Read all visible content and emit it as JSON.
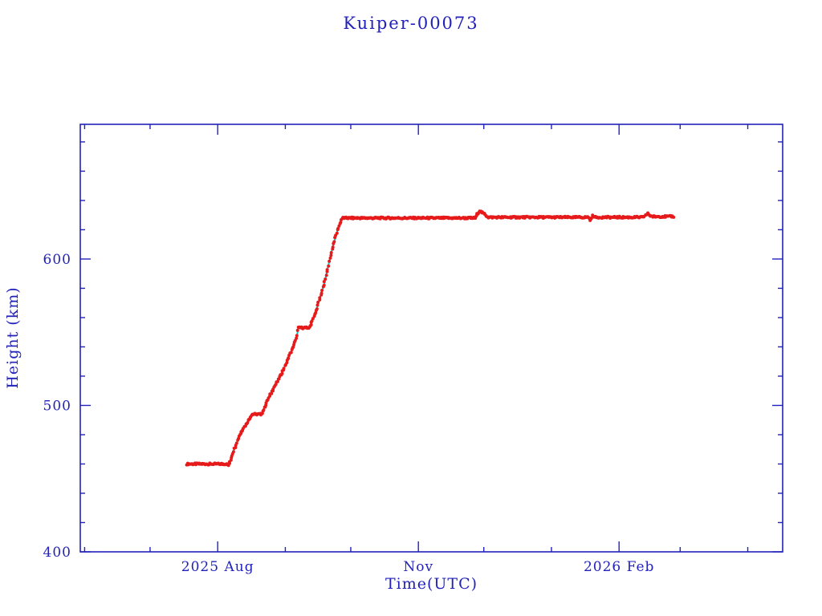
{
  "chart_data": {
    "type": "line",
    "title": "Kuiper-00073",
    "xlabel": "Time(UTC)",
    "ylabel": "Height (km)",
    "grid": false,
    "legend": null,
    "x_range": [
      "2025-05-30",
      "2026-04-17"
    ],
    "y_range": [
      400,
      692
    ],
    "x_major_ticks": [
      {
        "date": "2025-08-01",
        "label": "2025 Aug"
      },
      {
        "date": "2025-11-01",
        "label": "Nov"
      },
      {
        "date": "2026-02-01",
        "label": "2026 Feb"
      }
    ],
    "x_minor_ticks": [
      "2025-06-01",
      "2025-07-01",
      "2025-09-01",
      "2025-10-01",
      "2025-12-01",
      "2026-01-01",
      "2026-03-01",
      "2026-04-01"
    ],
    "y_major_ticks": [
      400,
      500,
      600
    ],
    "y_minor_step": 20,
    "colors": {
      "axis": "#2222bb",
      "marker": "#e61a1a",
      "line": "#00c8c8",
      "background": "#ffffff"
    },
    "series": [
      {
        "name": "height-km",
        "marker": "dot",
        "control_points": [
          [
            "2025-07-18",
            460
          ],
          [
            "2025-08-05",
            460
          ],
          [
            "2025-08-06",
            459
          ],
          [
            "2025-08-11",
            480
          ],
          [
            "2025-08-16",
            492
          ],
          [
            "2025-08-17",
            494
          ],
          [
            "2025-08-21",
            494
          ],
          [
            "2025-08-26",
            510
          ],
          [
            "2025-08-31",
            524
          ],
          [
            "2025-09-06",
            545
          ],
          [
            "2025-09-07",
            553
          ],
          [
            "2025-09-12",
            553
          ],
          [
            "2025-09-15",
            564
          ],
          [
            "2025-09-19",
            584
          ],
          [
            "2025-09-22",
            604
          ],
          [
            "2025-09-25",
            620
          ],
          [
            "2025-09-27",
            628
          ],
          [
            "2025-11-27",
            628
          ],
          [
            "2025-11-29",
            633
          ],
          [
            "2025-12-01",
            631
          ],
          [
            "2025-12-03",
            628.5
          ],
          [
            "2026-01-18",
            628.5
          ],
          [
            "2026-01-19",
            626.5
          ],
          [
            "2026-01-20",
            630
          ],
          [
            "2026-01-21",
            628.5
          ],
          [
            "2026-02-12",
            628.5
          ],
          [
            "2026-02-14",
            631
          ],
          [
            "2026-02-16",
            629
          ],
          [
            "2026-02-26",
            629
          ]
        ]
      }
    ]
  }
}
